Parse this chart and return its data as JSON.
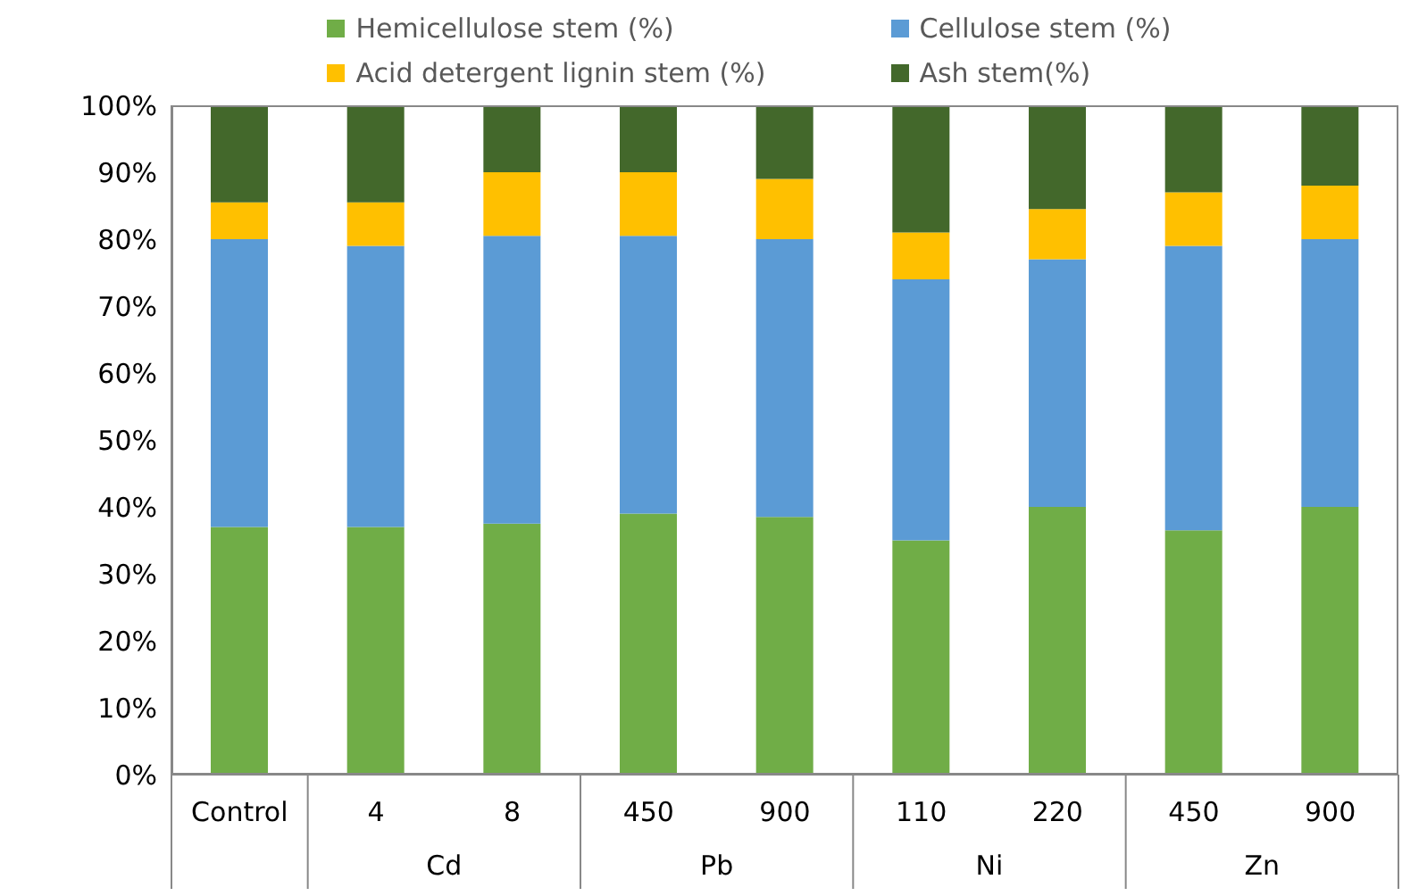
{
  "chart_data": {
    "type": "bar",
    "stacked": true,
    "categories": [
      "Control",
      "4",
      "8",
      "450",
      "900",
      "110",
      "220",
      "450",
      "900"
    ],
    "series": [
      {
        "name": "Hemicellulose stem (%)",
        "color": "#70ad47",
        "values": [
          37,
          37,
          37.5,
          39,
          38.5,
          35,
          40,
          36.5,
          40
        ]
      },
      {
        "name": "Cellulose stem (%)",
        "color": "#5b9bd5",
        "values": [
          43,
          42,
          43,
          41.5,
          41.5,
          39,
          37,
          42.5,
          40
        ]
      },
      {
        "name": "Acid detergent lignin stem (%)",
        "color": "#ffc000",
        "values": [
          5.5,
          6.5,
          9.5,
          9.5,
          9,
          7,
          7.5,
          8,
          8
        ]
      },
      {
        "name": "Ash stem(%)",
        "color": "#43682b",
        "values": [
          14.5,
          14.5,
          10,
          10,
          11,
          19,
          15.5,
          13,
          12
        ]
      }
    ],
    "ylim": [
      0,
      100
    ],
    "yticks": [
      {
        "value": 0,
        "label": "0%"
      },
      {
        "value": 10,
        "label": "10%"
      },
      {
        "value": 20,
        "label": "20%"
      },
      {
        "value": 30,
        "label": "30%"
      },
      {
        "value": 40,
        "label": "40%"
      },
      {
        "value": 50,
        "label": "50%"
      },
      {
        "value": 60,
        "label": "60%"
      },
      {
        "value": 70,
        "label": "70%"
      },
      {
        "value": 80,
        "label": "80%"
      },
      {
        "value": 90,
        "label": "90%"
      },
      {
        "value": 100,
        "label": "100%"
      }
    ],
    "annotations": [
      "Cd",
      "Pb",
      "Ni",
      "Zn"
    ],
    "grid": false,
    "legend": "top"
  }
}
